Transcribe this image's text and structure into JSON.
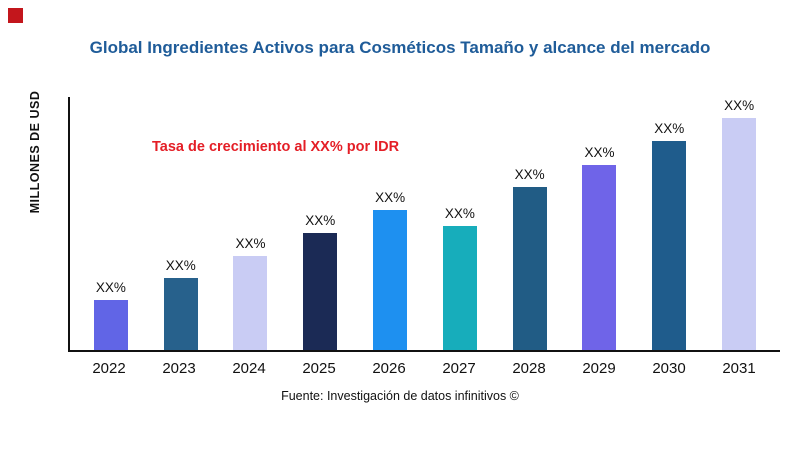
{
  "title": "Global Ingredientes Activos para Cosméticos Tamaño y alcance del mercado",
  "ylabel": "MILLONES DE USD",
  "annotation": "Tasa de crecimiento al XX% por IDR",
  "source": "Fuente: Investigación de datos infinitivos ©",
  "colors": {
    "title_blue": "#1f5c99",
    "annotation_red": "#e41e26",
    "corner_mark_red": "#c3161c",
    "axis_black": "#111111"
  },
  "chart_data": {
    "type": "bar",
    "title": "Global Ingredientes Activos para Cosméticos Tamaño y alcance del mercado",
    "xlabel": "",
    "ylabel": "MILLONES DE USD",
    "grid": false,
    "legend": "none",
    "categories": [
      "2022",
      "2023",
      "2024",
      "2025",
      "2026",
      "2027",
      "2028",
      "2029",
      "2030",
      "2031"
    ],
    "values": [
      50,
      72,
      94,
      117,
      140,
      124,
      163,
      185,
      209,
      232
    ],
    "value_unit": "relative-height-px (numeric axis values not shown in chart)",
    "bar_labels": [
      "XX%",
      "XX%",
      "XX%",
      "XX%",
      "XX%",
      "XX%",
      "XX%",
      "XX%",
      "XX%",
      "XX%"
    ],
    "bar_colors": [
      "#6165e6",
      "#27618c",
      "#c9ccf4",
      "#1b2a55",
      "#1e90f0",
      "#17adbb",
      "#215c85",
      "#6f64e8",
      "#1f5c8c",
      "#c9ccf4"
    ],
    "annotation": "Tasa de crecimiento al XX% por IDR",
    "source": "Fuente: Investigación de datos infinitivos ©"
  }
}
